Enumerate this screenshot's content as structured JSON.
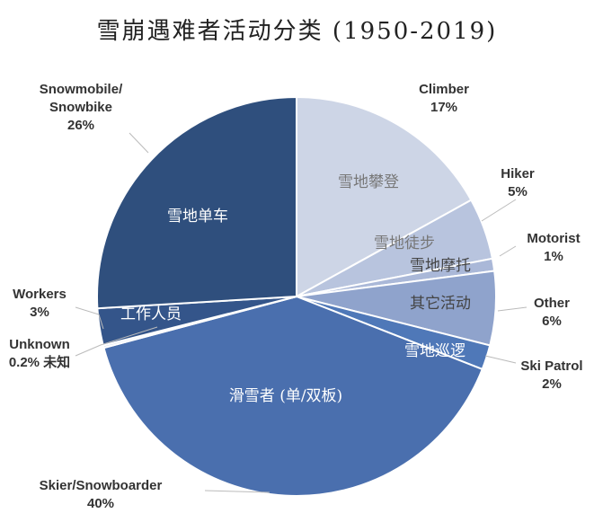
{
  "chart_data": {
    "type": "pie",
    "title": "雪崩遇难者活动分类 (1950-2019)",
    "start": "12 o'clock, clockwise",
    "slices": [
      {
        "name": "Climber",
        "pct_label": "17%",
        "value": 17,
        "cn": "雪地攀登",
        "color": "#cdd5e6",
        "cn_color": "#777"
      },
      {
        "name": "Hiker",
        "pct_label": "5%",
        "value": 5,
        "cn": "雪地徒步",
        "color": "#b8c4de",
        "cn_color": "#777"
      },
      {
        "name": "Motorist",
        "pct_label": "1%",
        "value": 1,
        "cn": "雪地摩托",
        "color": "#aab8d8",
        "cn_color": "#444"
      },
      {
        "name": "Other",
        "pct_label": "6%",
        "value": 6,
        "cn": "其它活动",
        "color": "#8fa3cc",
        "cn_color": "#444"
      },
      {
        "name": "Ski Patrol",
        "pct_label": "2%",
        "value": 2,
        "cn": "雪地巡逻",
        "color": "#4f78b8",
        "cn_color": "#fff"
      },
      {
        "name": "Skier/Snowboarder",
        "pct_label": "40%",
        "value": 40,
        "cn": "滑雪者 (单/双板)",
        "color": "#4a6fae",
        "cn_color": "#fff"
      },
      {
        "name": "Unknown",
        "pct_label": "0.2% 未知",
        "value": 0.2,
        "cn": "",
        "color": "#dfe6f2",
        "cn_color": "#fff"
      },
      {
        "name": "Workers",
        "pct_label": "3%",
        "value": 3,
        "cn": "工作人员",
        "color": "#34558a",
        "cn_color": "#fff"
      },
      {
        "name": "Snowmobile/\nSnowbike",
        "pct_label": "26%",
        "value": 26,
        "cn": "雪地单车",
        "color": "#2f4f7d",
        "cn_color": "#fff"
      }
    ]
  }
}
